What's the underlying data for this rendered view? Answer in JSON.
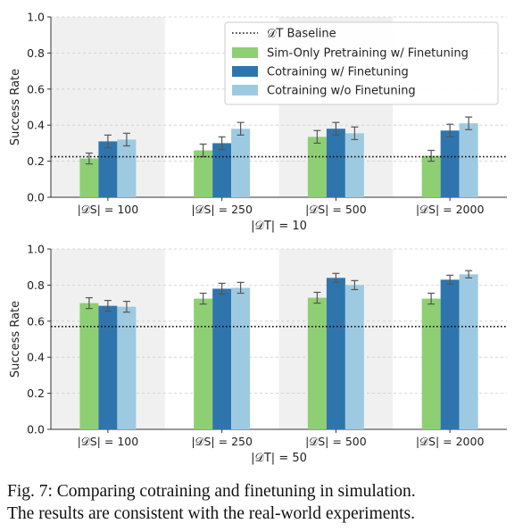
{
  "chart_data": [
    {
      "type": "bar",
      "categories": [
        "|𝒟S| = 100",
        "|𝒟S| = 250",
        "|𝒟S| = 500",
        "|𝒟S| = 2000"
      ],
      "xlabel": "|𝒟T| = 10",
      "ylabel": "Success Rate",
      "ylim": [
        0,
        1.0
      ],
      "yticks": [
        "0.0",
        "0.2",
        "0.4",
        "0.6",
        "0.8",
        "1.0"
      ],
      "baseline": 0.225,
      "series": [
        {
          "name": "Sim-Only Pretraining w/ Finetuning",
          "values": [
            0.215,
            0.26,
            0.335,
            0.23
          ],
          "errors": [
            0.03,
            0.035,
            0.035,
            0.03
          ]
        },
        {
          "name": "Cotraining w/ Finetuning",
          "values": [
            0.31,
            0.3,
            0.38,
            0.37
          ],
          "errors": [
            0.035,
            0.035,
            0.035,
            0.035
          ]
        },
        {
          "name": "Cotraining w/o Finetuning",
          "values": [
            0.32,
            0.38,
            0.355,
            0.41
          ],
          "errors": [
            0.035,
            0.035,
            0.035,
            0.035
          ]
        }
      ],
      "shaded_categories": [
        0,
        2
      ],
      "grid": "horizontal dashed",
      "legend": "top-right"
    },
    {
      "type": "bar",
      "categories": [
        "|𝒟S| = 100",
        "|𝒟S| = 250",
        "|𝒟S| = 500",
        "|𝒟S| = 2000"
      ],
      "xlabel": "|𝒟T| = 50",
      "ylabel": "Success Rate",
      "ylim": [
        0,
        1.0
      ],
      "yticks": [
        "0.0",
        "0.2",
        "0.4",
        "0.6",
        "0.8",
        "1.0"
      ],
      "baseline": 0.57,
      "series": [
        {
          "name": "Sim-Only Pretraining w/ Finetuning",
          "values": [
            0.7,
            0.725,
            0.73,
            0.725
          ],
          "errors": [
            0.03,
            0.03,
            0.03,
            0.03
          ]
        },
        {
          "name": "Cotraining w/ Finetuning",
          "values": [
            0.685,
            0.78,
            0.84,
            0.83
          ],
          "errors": [
            0.03,
            0.03,
            0.025,
            0.025
          ]
        },
        {
          "name": "Cotraining w/o Finetuning",
          "values": [
            0.68,
            0.785,
            0.8,
            0.86
          ],
          "errors": [
            0.03,
            0.03,
            0.025,
            0.02
          ]
        }
      ],
      "shaded_categories": [
        0,
        2
      ],
      "grid": "horizontal dashed"
    }
  ],
  "legend": {
    "baseline_label": "𝒟T Baseline",
    "series_labels": [
      "Sim-Only Pretraining w/ Finetuning",
      "Cotraining w/ Finetuning",
      "Cotraining w/o Finetuning"
    ]
  },
  "colors": {
    "sim_only": "#8ecf73",
    "cotrain_ft": "#2f75ad",
    "cotrain_noft": "#9ecae1",
    "shade": "#f0f0f0",
    "grid": "#cccccc",
    "error": "#555555"
  },
  "caption": {
    "line1": "Fig. 7: Comparing cotraining and finetuning in simulation.",
    "line2": "The results are consistent with the real-world experiments."
  }
}
